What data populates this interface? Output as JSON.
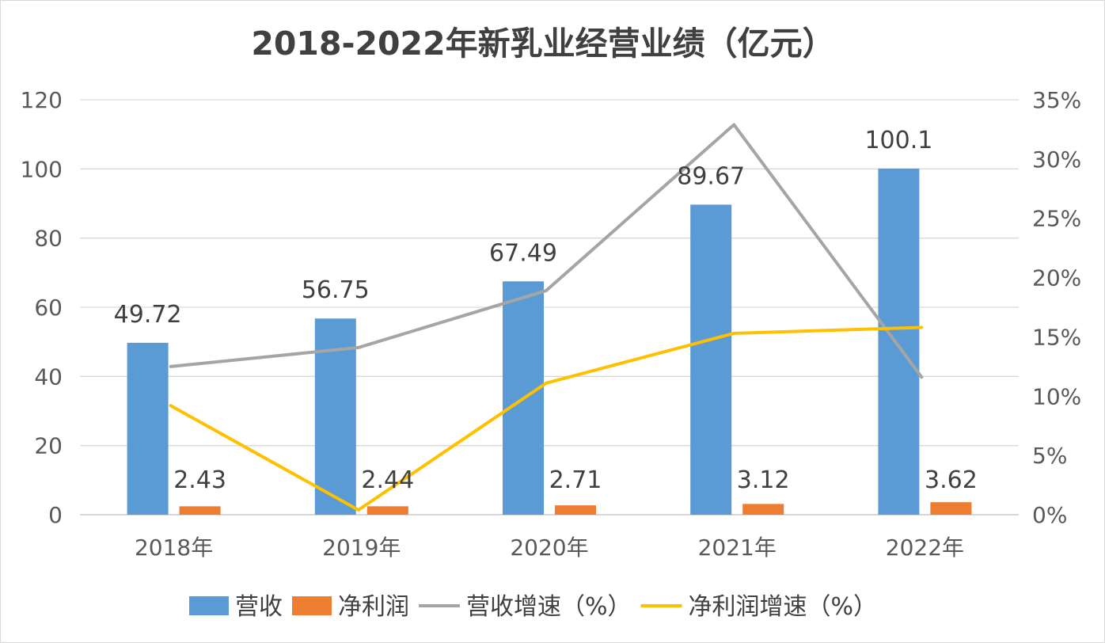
{
  "chart_data": {
    "type": "bar",
    "title": "2018-2022年新乳业经营业绩（亿元）",
    "categories": [
      "2018年",
      "2019年",
      "2020年",
      "2021年",
      "2022年"
    ],
    "y_left": {
      "range": [
        0,
        120
      ],
      "ticks": [
        "0",
        "20",
        "40",
        "60",
        "80",
        "100",
        "120"
      ]
    },
    "y_right": {
      "range": [
        0,
        35
      ],
      "ticks": [
        "0%",
        "5%",
        "10%",
        "15%",
        "20%",
        "25%",
        "30%",
        "35%"
      ]
    },
    "grid": true,
    "legend_position": "bottom",
    "series": [
      {
        "name": "营收",
        "kind": "bar",
        "axis": "left",
        "color": "#5b9bd5",
        "values": [
          49.72,
          56.75,
          67.49,
          89.67,
          100.1
        ],
        "labels": [
          "49.72",
          "56.75",
          "67.49",
          "89.67",
          "100.1"
        ]
      },
      {
        "name": "净利润",
        "kind": "bar",
        "axis": "left",
        "color": "#ed7d31",
        "values": [
          2.43,
          2.44,
          2.71,
          3.12,
          3.62
        ],
        "labels": [
          "2.43",
          "2.44",
          "2.71",
          "3.12",
          "3.62"
        ]
      },
      {
        "name": "营收增速（%）",
        "kind": "line",
        "axis": "right",
        "color": "#a5a5a5",
        "values": [
          12.5,
          14.1,
          18.9,
          32.9,
          11.6
        ]
      },
      {
        "name": "净利润增速（%）",
        "kind": "line",
        "axis": "right",
        "color": "#ffc000",
        "values": [
          9.2,
          0.4,
          11.1,
          15.3,
          15.8
        ]
      }
    ]
  }
}
